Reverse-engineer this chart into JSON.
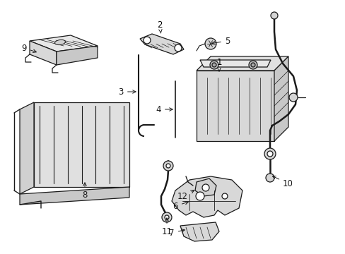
{
  "background_color": "#ffffff",
  "line_color": "#1a1a1a",
  "label_color": "#000000",
  "fig_w": 4.89,
  "fig_h": 3.6,
  "dpi": 100
}
